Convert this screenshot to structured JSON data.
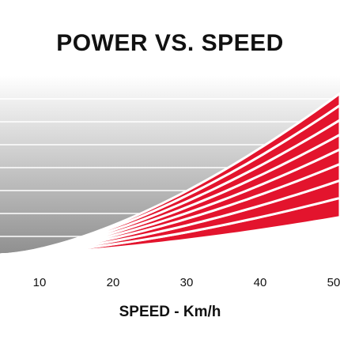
{
  "chart_data": {
    "type": "area",
    "title": "POWER VS. SPEED",
    "xlabel": "SPEED - Km/h",
    "ylabel": "",
    "xlim": [
      0,
      50
    ],
    "x_ticks": [
      "10",
      "20",
      "30",
      "40",
      "50"
    ],
    "x_tick_values": [
      10,
      20,
      30,
      40,
      50
    ],
    "y_ticks": [],
    "grid": true,
    "gridlines_y_fraction": [
      0.125,
      0.25,
      0.375,
      0.5,
      0.625,
      0.75,
      0.875
    ],
    "band_count": 8,
    "band_end_fraction_at_xmax": [
      0.23,
      0.335,
      0.43,
      0.52,
      0.6,
      0.68,
      0.76,
      0.84,
      0.905
    ],
    "colors": {
      "band": "#e3142d",
      "separator": "#ffffff",
      "background_top": "#ffffff",
      "background_bottom": "#8c8c8c",
      "gridline": "#ffffff"
    }
  }
}
